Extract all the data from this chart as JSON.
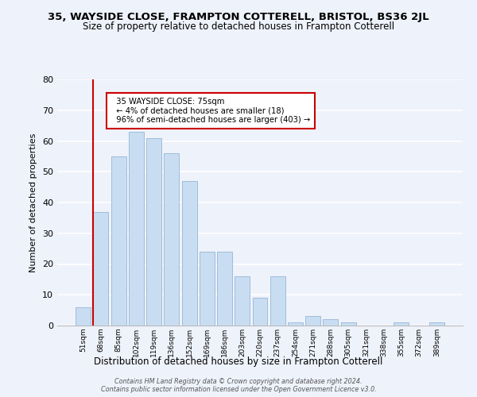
{
  "title_line1": "35, WAYSIDE CLOSE, FRAMPTON COTTERELL, BRISTOL, BS36 2JL",
  "title_line2": "Size of property relative to detached houses in Frampton Cotterell",
  "xlabel": "Distribution of detached houses by size in Frampton Cotterell",
  "ylabel": "Number of detached properties",
  "bar_labels": [
    "51sqm",
    "68sqm",
    "85sqm",
    "102sqm",
    "119sqm",
    "136sqm",
    "152sqm",
    "169sqm",
    "186sqm",
    "203sqm",
    "220sqm",
    "237sqm",
    "254sqm",
    "271sqm",
    "288sqm",
    "305sqm",
    "321sqm",
    "338sqm",
    "355sqm",
    "372sqm",
    "389sqm"
  ],
  "bar_values": [
    6,
    37,
    55,
    63,
    61,
    56,
    47,
    24,
    24,
    16,
    9,
    16,
    1,
    3,
    2,
    1,
    0,
    0,
    1,
    0,
    1
  ],
  "bar_color": "#c8ddf2",
  "bar_edge_color": "#a0bcd8",
  "highlight_line_color": "#cc0000",
  "ylim": [
    0,
    80
  ],
  "yticks": [
    0,
    10,
    20,
    30,
    40,
    50,
    60,
    70,
    80
  ],
  "annotation_title": "35 WAYSIDE CLOSE: 75sqm",
  "annotation_line1": "← 4% of detached houses are smaller (18)",
  "annotation_line2": "96% of semi-detached houses are larger (403) →",
  "annotation_box_color": "#ffffff",
  "annotation_box_edge_color": "#cc0000",
  "footer_line1": "Contains HM Land Registry data © Crown copyright and database right 2024.",
  "footer_line2": "Contains public sector information licensed under the Open Government Licence v3.0.",
  "background_color": "#eef2fb",
  "grid_color": "#ffffff"
}
